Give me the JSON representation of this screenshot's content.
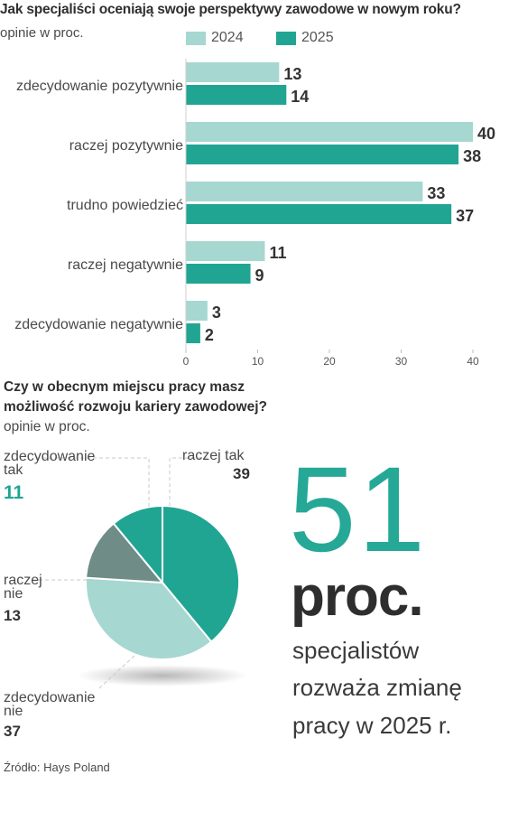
{
  "bar_chart": {
    "title": "Jak specjaliści oceniają swoje perspektywy zawodowe w nowym roku?",
    "subtitle": "opinie w proc.",
    "legend": [
      "2024",
      "2025"
    ]
  },
  "pie_chart": {
    "title_bold": "Czy w obecnym miejscu pracy masz możliwość rozwoju kariery zawodowej?",
    "title_rest": " opinie w proc."
  },
  "highlight": {
    "number": "51",
    "unit": "proc.",
    "lines": [
      "specjalistów",
      "rozważa zmianę",
      "pracy w 2025 r."
    ]
  },
  "source": "Źródło: Hays Poland",
  "colors": {
    "series_2024": "#a6d7d1",
    "series_2025": "#21a593",
    "pie_dark": "#6f8c87",
    "accent": "#26a897"
  },
  "chart_data": [
    {
      "type": "bar",
      "orientation": "horizontal",
      "categories": [
        "zdecydowanie pozytywnie",
        "raczej pozytywnie",
        "trudno powiedzieć",
        "raczej negatywnie",
        "zdecydowanie negatywnie"
      ],
      "series": [
        {
          "name": "2024",
          "values": [
            13,
            40,
            33,
            11,
            3
          ]
        },
        {
          "name": "2025",
          "values": [
            14,
            38,
            37,
            9,
            2
          ]
        }
      ],
      "xlim": [
        0,
        40
      ],
      "x_ticks": [
        "0",
        "10",
        "20",
        "30",
        "40"
      ],
      "grid": false
    },
    {
      "type": "pie",
      "slices": [
        {
          "label": "raczej tak",
          "value": 39,
          "value_label": "39"
        },
        {
          "label": "zdecydowanie nie",
          "value": 37,
          "value_label": "37"
        },
        {
          "label": "raczej nie",
          "value": 13,
          "value_label": "13"
        },
        {
          "label": "zdecydowanie tak",
          "value": 11,
          "value_label": "11"
        }
      ]
    }
  ]
}
